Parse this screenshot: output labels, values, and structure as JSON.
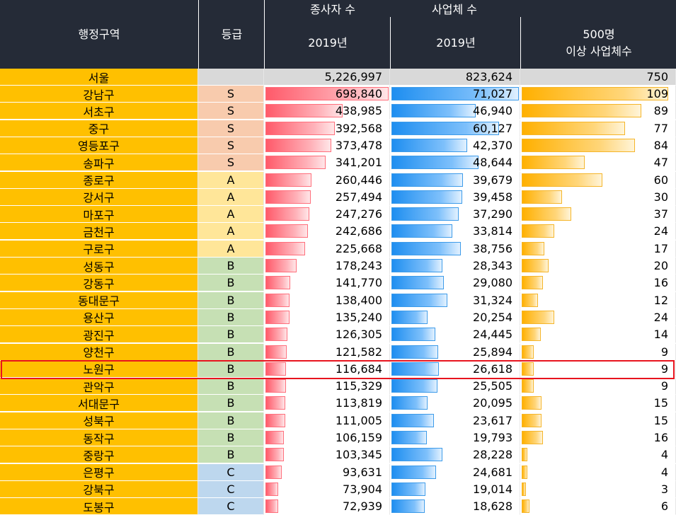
{
  "header": {
    "region_label": "행정구역",
    "grade_label": "등급",
    "employees_group": "종사자 수",
    "business_group": "사업체 수",
    "employees_year": "2019년",
    "business_year": "2019년",
    "large_business_line1": "500명",
    "large_business_line2": "이상 사업체수"
  },
  "total": {
    "region": "서울",
    "employees": "5,226,997",
    "businesses": "823,624",
    "large": "750"
  },
  "highlighted_region": "노원구",
  "rows": [
    {
      "region": "강남구",
      "grade": "S",
      "employees": "698,840",
      "businesses": "71,027",
      "large": "109",
      "emp_n": 698840,
      "bus_n": 71027,
      "large_n": 109
    },
    {
      "region": "서초구",
      "grade": "S",
      "employees": "438,985",
      "businesses": "46,940",
      "large": "89",
      "emp_n": 438985,
      "bus_n": 46940,
      "large_n": 89
    },
    {
      "region": "중구",
      "grade": "S",
      "employees": "392,568",
      "businesses": "60,127",
      "large": "77",
      "emp_n": 392568,
      "bus_n": 60127,
      "large_n": 77
    },
    {
      "region": "영등포구",
      "grade": "S",
      "employees": "373,478",
      "businesses": "42,370",
      "large": "84",
      "emp_n": 373478,
      "bus_n": 42370,
      "large_n": 84
    },
    {
      "region": "송파구",
      "grade": "S",
      "employees": "341,201",
      "businesses": "48,644",
      "large": "47",
      "emp_n": 341201,
      "bus_n": 48644,
      "large_n": 47
    },
    {
      "region": "종로구",
      "grade": "A",
      "employees": "260,446",
      "businesses": "39,679",
      "large": "60",
      "emp_n": 260446,
      "bus_n": 39679,
      "large_n": 60
    },
    {
      "region": "강서구",
      "grade": "A",
      "employees": "257,494",
      "businesses": "39,458",
      "large": "30",
      "emp_n": 257494,
      "bus_n": 39458,
      "large_n": 30
    },
    {
      "region": "마포구",
      "grade": "A",
      "employees": "247,276",
      "businesses": "37,290",
      "large": "37",
      "emp_n": 247276,
      "bus_n": 37290,
      "large_n": 37
    },
    {
      "region": "금천구",
      "grade": "A",
      "employees": "242,686",
      "businesses": "33,814",
      "large": "24",
      "emp_n": 242686,
      "bus_n": 33814,
      "large_n": 24
    },
    {
      "region": "구로구",
      "grade": "A",
      "employees": "225,668",
      "businesses": "38,756",
      "large": "17",
      "emp_n": 225668,
      "bus_n": 38756,
      "large_n": 17
    },
    {
      "region": "성동구",
      "grade": "B",
      "employees": "178,243",
      "businesses": "28,343",
      "large": "20",
      "emp_n": 178243,
      "bus_n": 28343,
      "large_n": 20
    },
    {
      "region": "강동구",
      "grade": "B",
      "employees": "141,770",
      "businesses": "29,080",
      "large": "16",
      "emp_n": 141770,
      "bus_n": 29080,
      "large_n": 16
    },
    {
      "region": "동대문구",
      "grade": "B",
      "employees": "138,400",
      "businesses": "31,324",
      "large": "12",
      "emp_n": 138400,
      "bus_n": 31324,
      "large_n": 12
    },
    {
      "region": "용산구",
      "grade": "B",
      "employees": "135,240",
      "businesses": "20,254",
      "large": "24",
      "emp_n": 135240,
      "bus_n": 20254,
      "large_n": 24
    },
    {
      "region": "광진구",
      "grade": "B",
      "employees": "126,305",
      "businesses": "24,445",
      "large": "14",
      "emp_n": 126305,
      "bus_n": 24445,
      "large_n": 14
    },
    {
      "region": "양천구",
      "grade": "B",
      "employees": "121,582",
      "businesses": "25,894",
      "large": "9",
      "emp_n": 121582,
      "bus_n": 25894,
      "large_n": 9
    },
    {
      "region": "노원구",
      "grade": "B",
      "employees": "116,684",
      "businesses": "26,618",
      "large": "9",
      "emp_n": 116684,
      "bus_n": 26618,
      "large_n": 9
    },
    {
      "region": "관악구",
      "grade": "B",
      "employees": "115,329",
      "businesses": "25,505",
      "large": "9",
      "emp_n": 115329,
      "bus_n": 25505,
      "large_n": 9
    },
    {
      "region": "서대문구",
      "grade": "B",
      "employees": "113,819",
      "businesses": "20,095",
      "large": "15",
      "emp_n": 113819,
      "bus_n": 20095,
      "large_n": 15
    },
    {
      "region": "성북구",
      "grade": "B",
      "employees": "111,005",
      "businesses": "23,617",
      "large": "15",
      "emp_n": 111005,
      "bus_n": 23617,
      "large_n": 15
    },
    {
      "region": "동작구",
      "grade": "B",
      "employees": "106,159",
      "businesses": "19,793",
      "large": "16",
      "emp_n": 106159,
      "bus_n": 19793,
      "large_n": 16
    },
    {
      "region": "중랑구",
      "grade": "B",
      "employees": "103,345",
      "businesses": "28,228",
      "large": "4",
      "emp_n": 103345,
      "bus_n": 28228,
      "large_n": 4
    },
    {
      "region": "은평구",
      "grade": "C",
      "employees": "93,631",
      "businesses": "24,681",
      "large": "4",
      "emp_n": 93631,
      "bus_n": 24681,
      "large_n": 4
    },
    {
      "region": "강북구",
      "grade": "C",
      "employees": "73,904",
      "businesses": "19,014",
      "large": "3",
      "emp_n": 73904,
      "bus_n": 19014,
      "large_n": 3
    },
    {
      "region": "도봉구",
      "grade": "C",
      "employees": "72,939",
      "businesses": "18,628",
      "large": "6",
      "emp_n": 72939,
      "bus_n": 18628,
      "large_n": 6
    }
  ],
  "colors": {
    "header_bg": "#252b37",
    "region_bg": "#ffc000",
    "grade_S": "#f8cbad",
    "grade_A": "#ffe699",
    "grade_B": "#c6e0b4",
    "grade_C": "#bdd7ee",
    "bar_employees": "#ff5a6a",
    "bar_businesses": "#1e8ef0",
    "bar_large": "#ffb000",
    "highlight_border": "#e8141e"
  }
}
